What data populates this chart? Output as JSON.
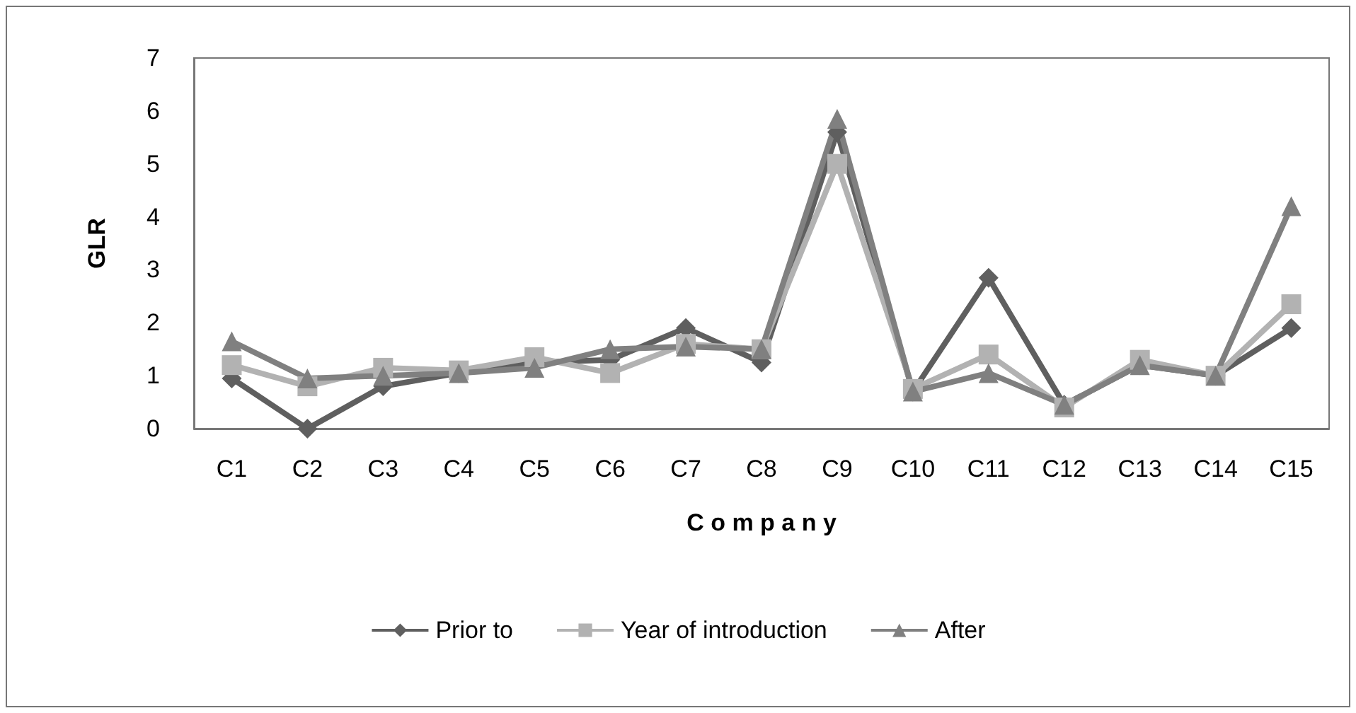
{
  "chart_data": {
    "type": "line",
    "xlabel": "C o m p a n y",
    "ylabel": "GLR",
    "categories": [
      "C1",
      "C2",
      "C3",
      "C4",
      "C5",
      "C6",
      "C7",
      "C8",
      "C9",
      "C10",
      "C11",
      "C12",
      "C13",
      "C14",
      "C15"
    ],
    "series": [
      {
        "name": "Prior to",
        "color": "#5f5f5f",
        "marker": "diamond",
        "values": [
          0.95,
          0.0,
          0.8,
          1.05,
          1.25,
          1.3,
          1.9,
          1.25,
          5.6,
          0.7,
          2.85,
          0.45,
          1.2,
          1.0,
          1.9
        ]
      },
      {
        "name": "Year of introduction",
        "color": "#b2b2b2",
        "marker": "square",
        "values": [
          1.2,
          0.8,
          1.15,
          1.1,
          1.35,
          1.05,
          1.6,
          1.5,
          5.0,
          0.75,
          1.4,
          0.4,
          1.3,
          1.0,
          2.35
        ]
      },
      {
        "name": "After",
        "color": "#808080",
        "marker": "triangle",
        "values": [
          1.65,
          0.95,
          1.0,
          1.05,
          1.15,
          1.5,
          1.55,
          1.5,
          5.85,
          0.7,
          1.05,
          0.45,
          1.2,
          1.0,
          4.2
        ]
      }
    ],
    "ylim": [
      0,
      7
    ],
    "yticks": [
      0,
      1,
      2,
      3,
      4,
      5,
      6,
      7
    ],
    "grid": false,
    "legend": "bottom",
    "line_style": "solid"
  }
}
